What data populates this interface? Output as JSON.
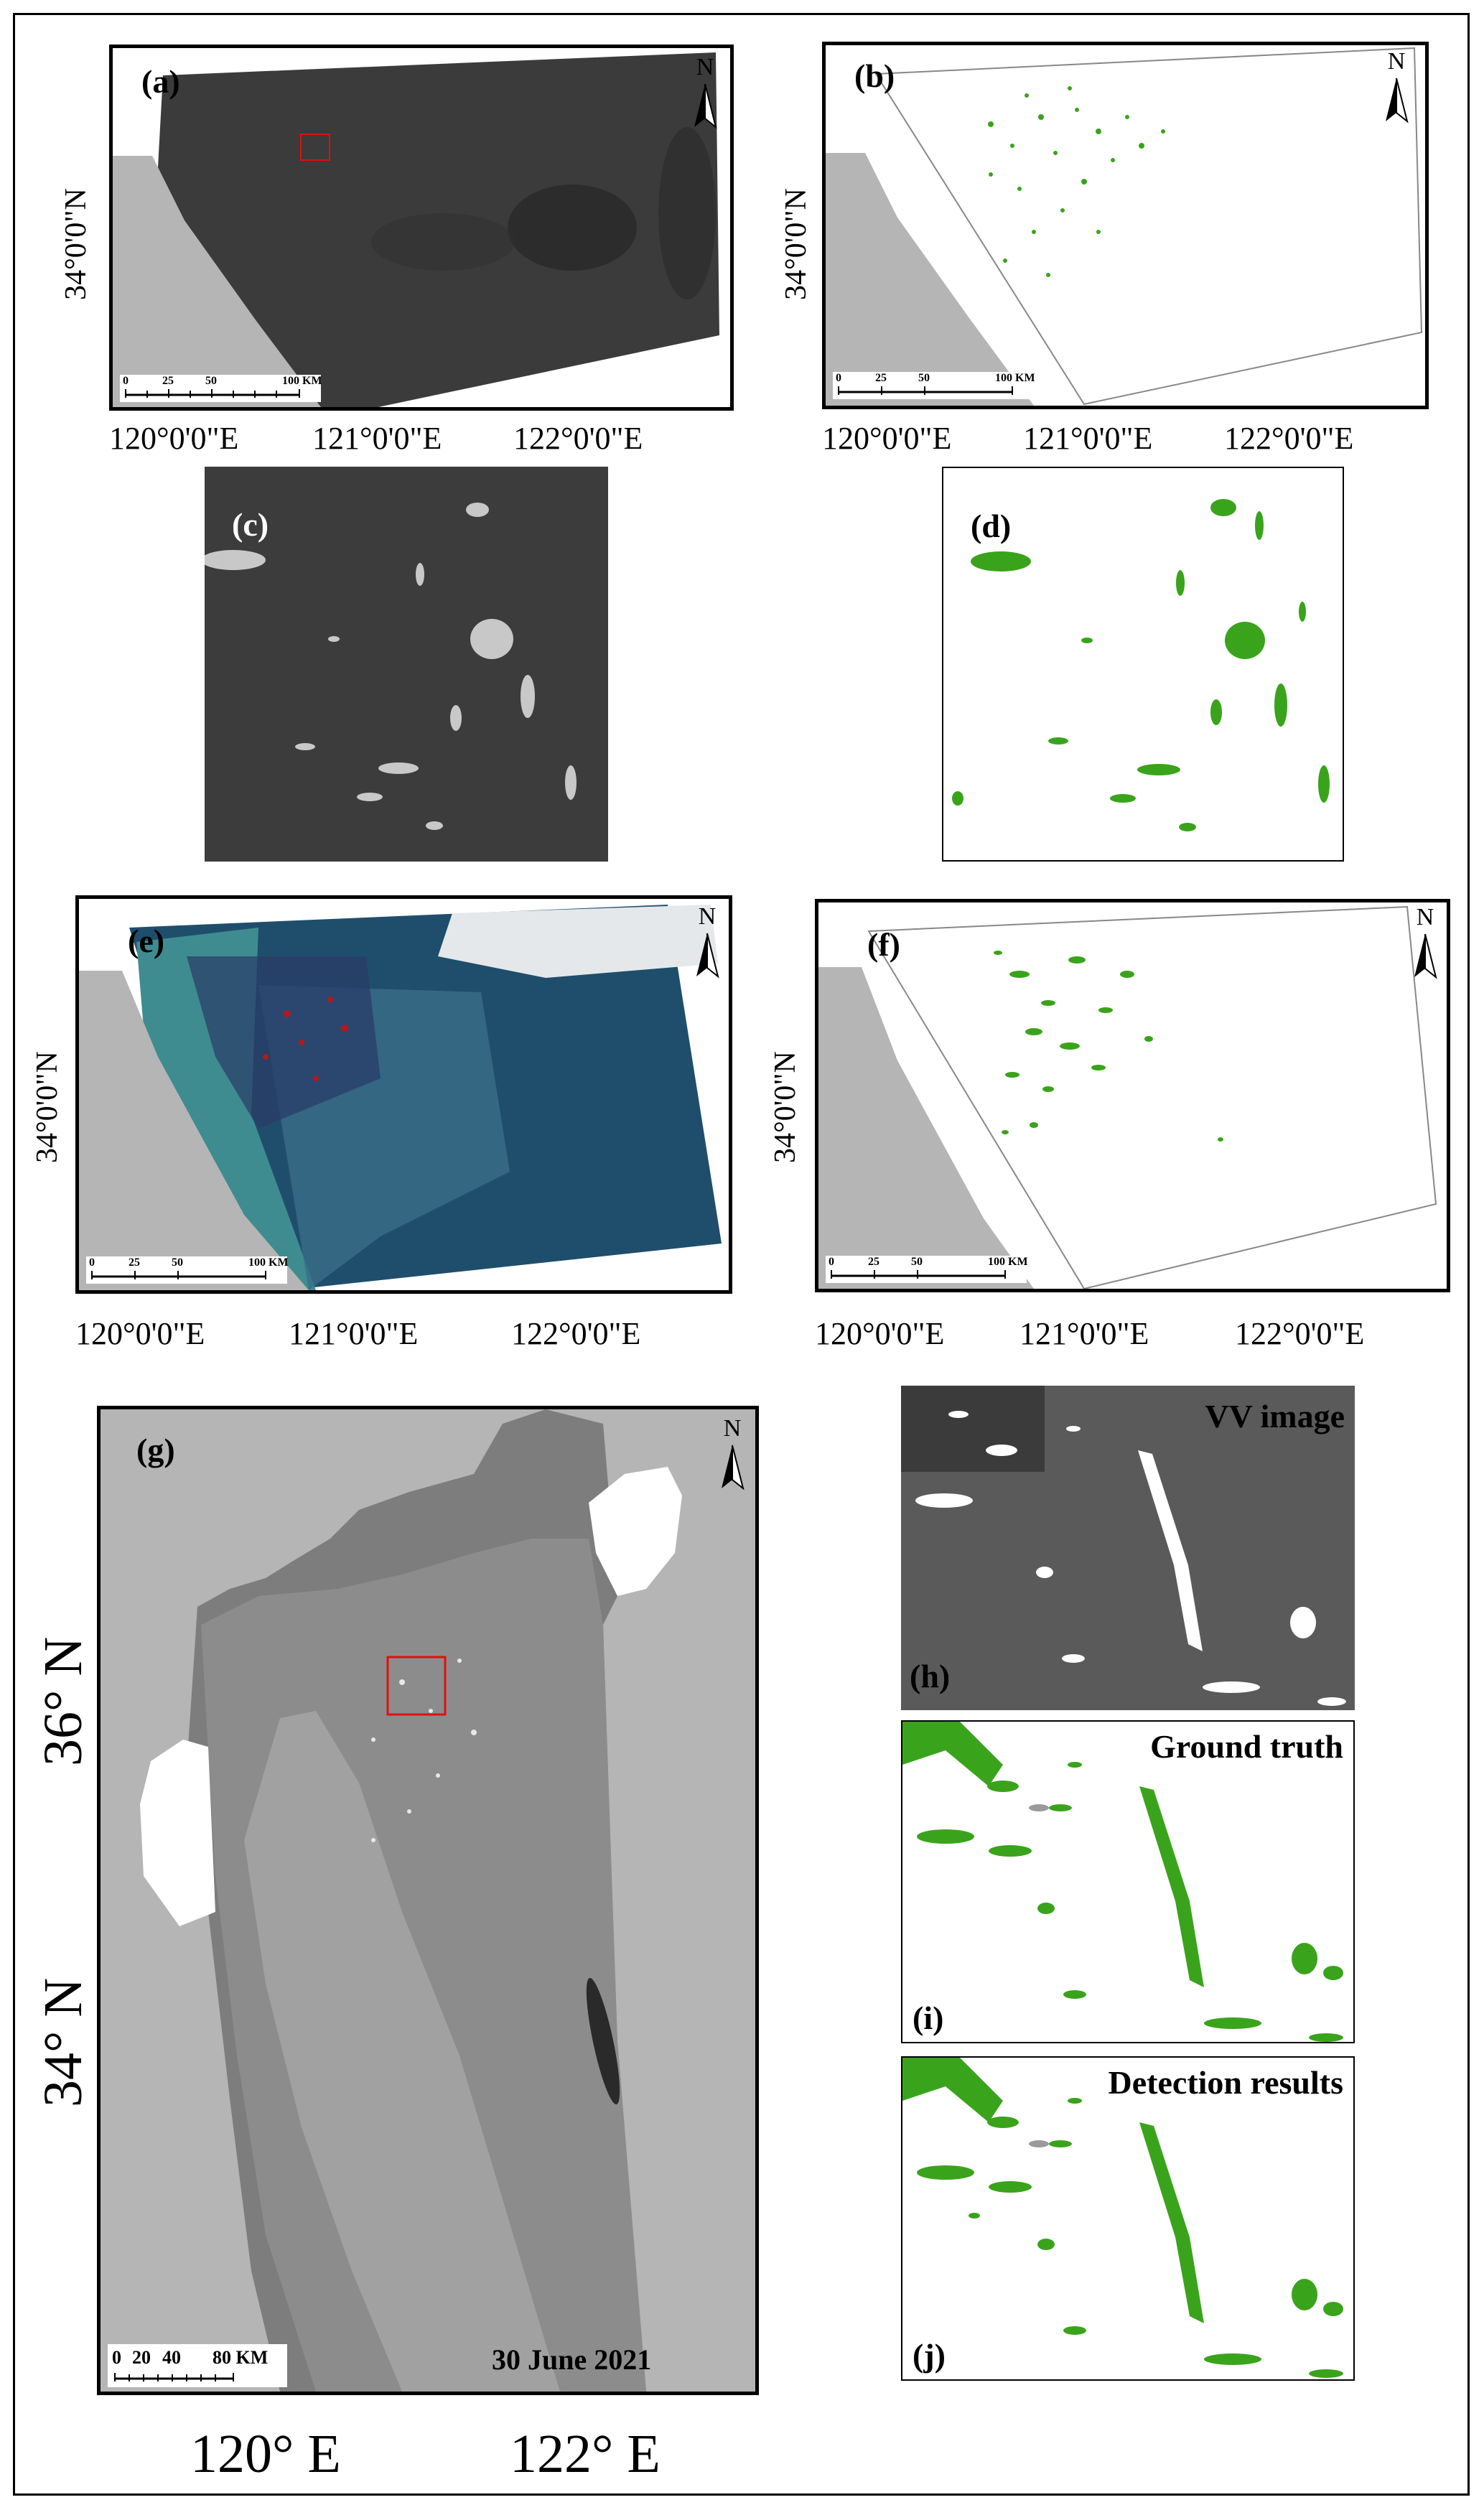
{
  "panels": {
    "a": {
      "label": "(a)"
    },
    "b": {
      "label": "(b)"
    },
    "c": {
      "label": "(c)"
    },
    "d": {
      "label": "(d)"
    },
    "e": {
      "label": "(e)"
    },
    "f": {
      "label": "(f)"
    },
    "g": {
      "label": "(g)",
      "date": "30 June 2021"
    },
    "h": {
      "label": "(h)",
      "title": "VV image"
    },
    "i": {
      "label": "(i)",
      "title": "Ground truth"
    },
    "j": {
      "label": "(j)",
      "title": "Detection results"
    }
  },
  "north_label": "N",
  "scale_small": {
    "ticks": [
      "0",
      "25",
      "50",
      "100 KM"
    ]
  },
  "scale_large": {
    "ticks": [
      "0",
      "20",
      "40",
      "80 KM"
    ]
  },
  "lon_labels_small": [
    "120°0'0\"E",
    "121°0'0\"E",
    "122°0'0\"E"
  ],
  "lat_label_small": "34°0'0\"N",
  "lon_labels_large": [
    "120° E",
    "122° E"
  ],
  "lat_labels_large": [
    "36° N",
    "34° N"
  ],
  "colors": {
    "algae": "#3aa31c",
    "land": "#b5b5b5",
    "sar_dark": "#3c3c3c",
    "roi_box": "#e01010"
  }
}
